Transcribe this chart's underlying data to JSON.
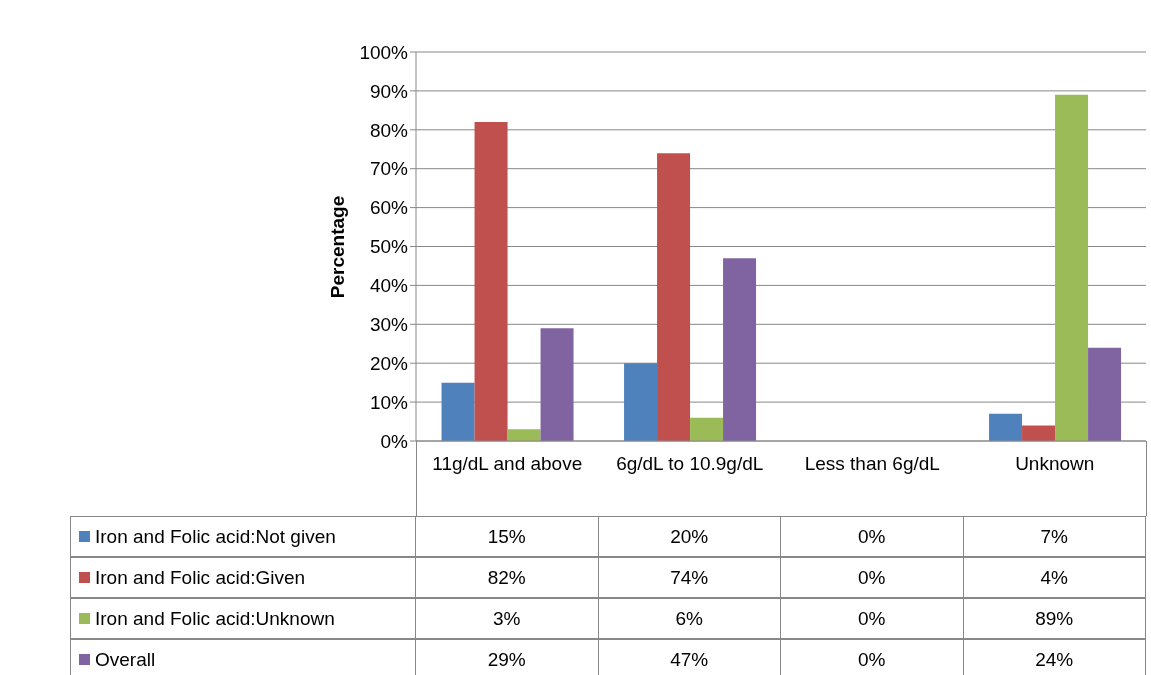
{
  "chart_data": {
    "type": "bar",
    "ylabel": "Percentage",
    "categories": [
      "11g/dL and above",
      "6g/dL to 10.9g/dL",
      "Less than 6g/dL",
      "Unknown"
    ],
    "series": [
      {
        "name": "Iron and Folic acid:Not given",
        "color": "#4f81bd",
        "values": [
          15,
          20,
          0,
          7
        ],
        "value_labels": [
          "15%",
          "20%",
          "0%",
          "7%"
        ]
      },
      {
        "name": "Iron and Folic acid:Given",
        "color": "#c0504d",
        "values": [
          82,
          74,
          0,
          4
        ],
        "value_labels": [
          "82%",
          "74%",
          "0%",
          "4%"
        ]
      },
      {
        "name": "Iron and Folic acid:Unknown",
        "color": "#9bbb59",
        "values": [
          3,
          6,
          0,
          89
        ],
        "value_labels": [
          "3%",
          "6%",
          "0%",
          "89%"
        ]
      },
      {
        "name": "Overall",
        "color": "#8064a2",
        "values": [
          29,
          47,
          0,
          24
        ],
        "value_labels": [
          "29%",
          "47%",
          "0%",
          "24%"
        ]
      }
    ],
    "ylim": [
      0,
      100
    ],
    "yticks": [
      {
        "value": 0,
        "label": "0%"
      },
      {
        "value": 10,
        "label": "10%"
      },
      {
        "value": 20,
        "label": "20%"
      },
      {
        "value": 30,
        "label": "30%"
      },
      {
        "value": 40,
        "label": "40%"
      },
      {
        "value": 50,
        "label": "50%"
      },
      {
        "value": 60,
        "label": "60%"
      },
      {
        "value": 70,
        "label": "70%"
      },
      {
        "value": 80,
        "label": "80%"
      },
      {
        "value": 90,
        "label": "90%"
      },
      {
        "value": 100,
        "label": "100%"
      }
    ],
    "grid": "y",
    "legend": "bottom"
  }
}
